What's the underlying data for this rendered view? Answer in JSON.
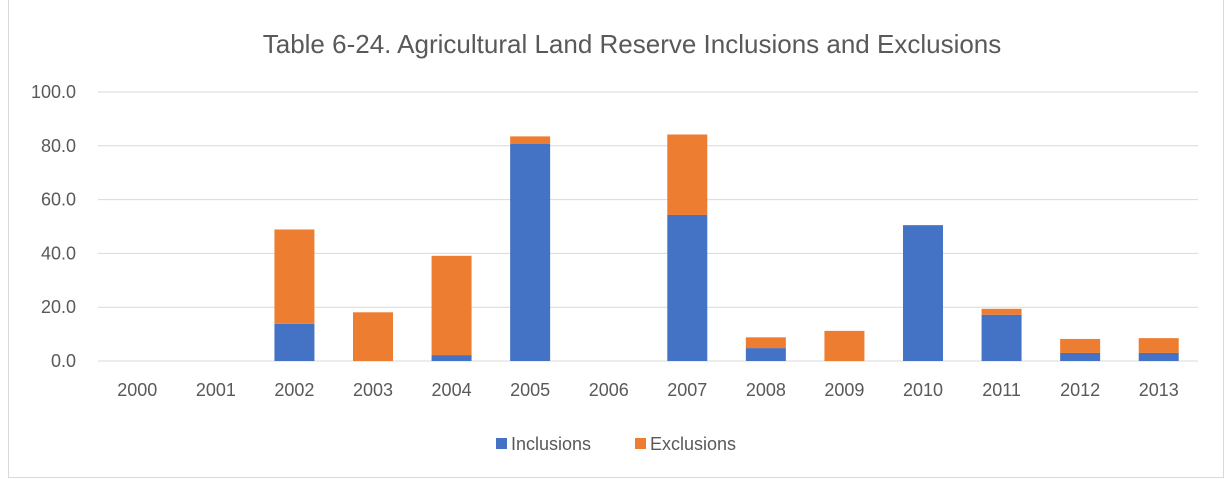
{
  "chart_data": {
    "type": "bar",
    "stacked": true,
    "title": "Table 6-24. Agricultural Land Reserve Inclusions and Exclusions",
    "xlabel": "",
    "ylabel": "",
    "categories": [
      "2000",
      "2001",
      "2002",
      "2003",
      "2004",
      "2005",
      "2006",
      "2007",
      "2008",
      "2009",
      "2010",
      "2011",
      "2012",
      "2013"
    ],
    "series": [
      {
        "name": "Inclusions",
        "color": "#4472c4",
        "values": [
          0,
          0,
          13.8,
          0,
          2.2,
          80.8,
          0,
          54.3,
          4.8,
          0,
          50.5,
          17.2,
          3.0,
          3.0
        ]
      },
      {
        "name": "Exclusions",
        "color": "#ed7d31",
        "values": [
          0,
          0,
          35.1,
          18.1,
          36.9,
          2.7,
          0,
          29.9,
          4.0,
          11.2,
          0,
          2.2,
          5.2,
          5.5
        ]
      }
    ],
    "yticks": [
      "0.0",
      "20.0",
      "40.0",
      "60.0",
      "80.0",
      "100.0"
    ],
    "ylim": [
      0,
      100
    ],
    "grid": true,
    "legend": "bottom"
  }
}
